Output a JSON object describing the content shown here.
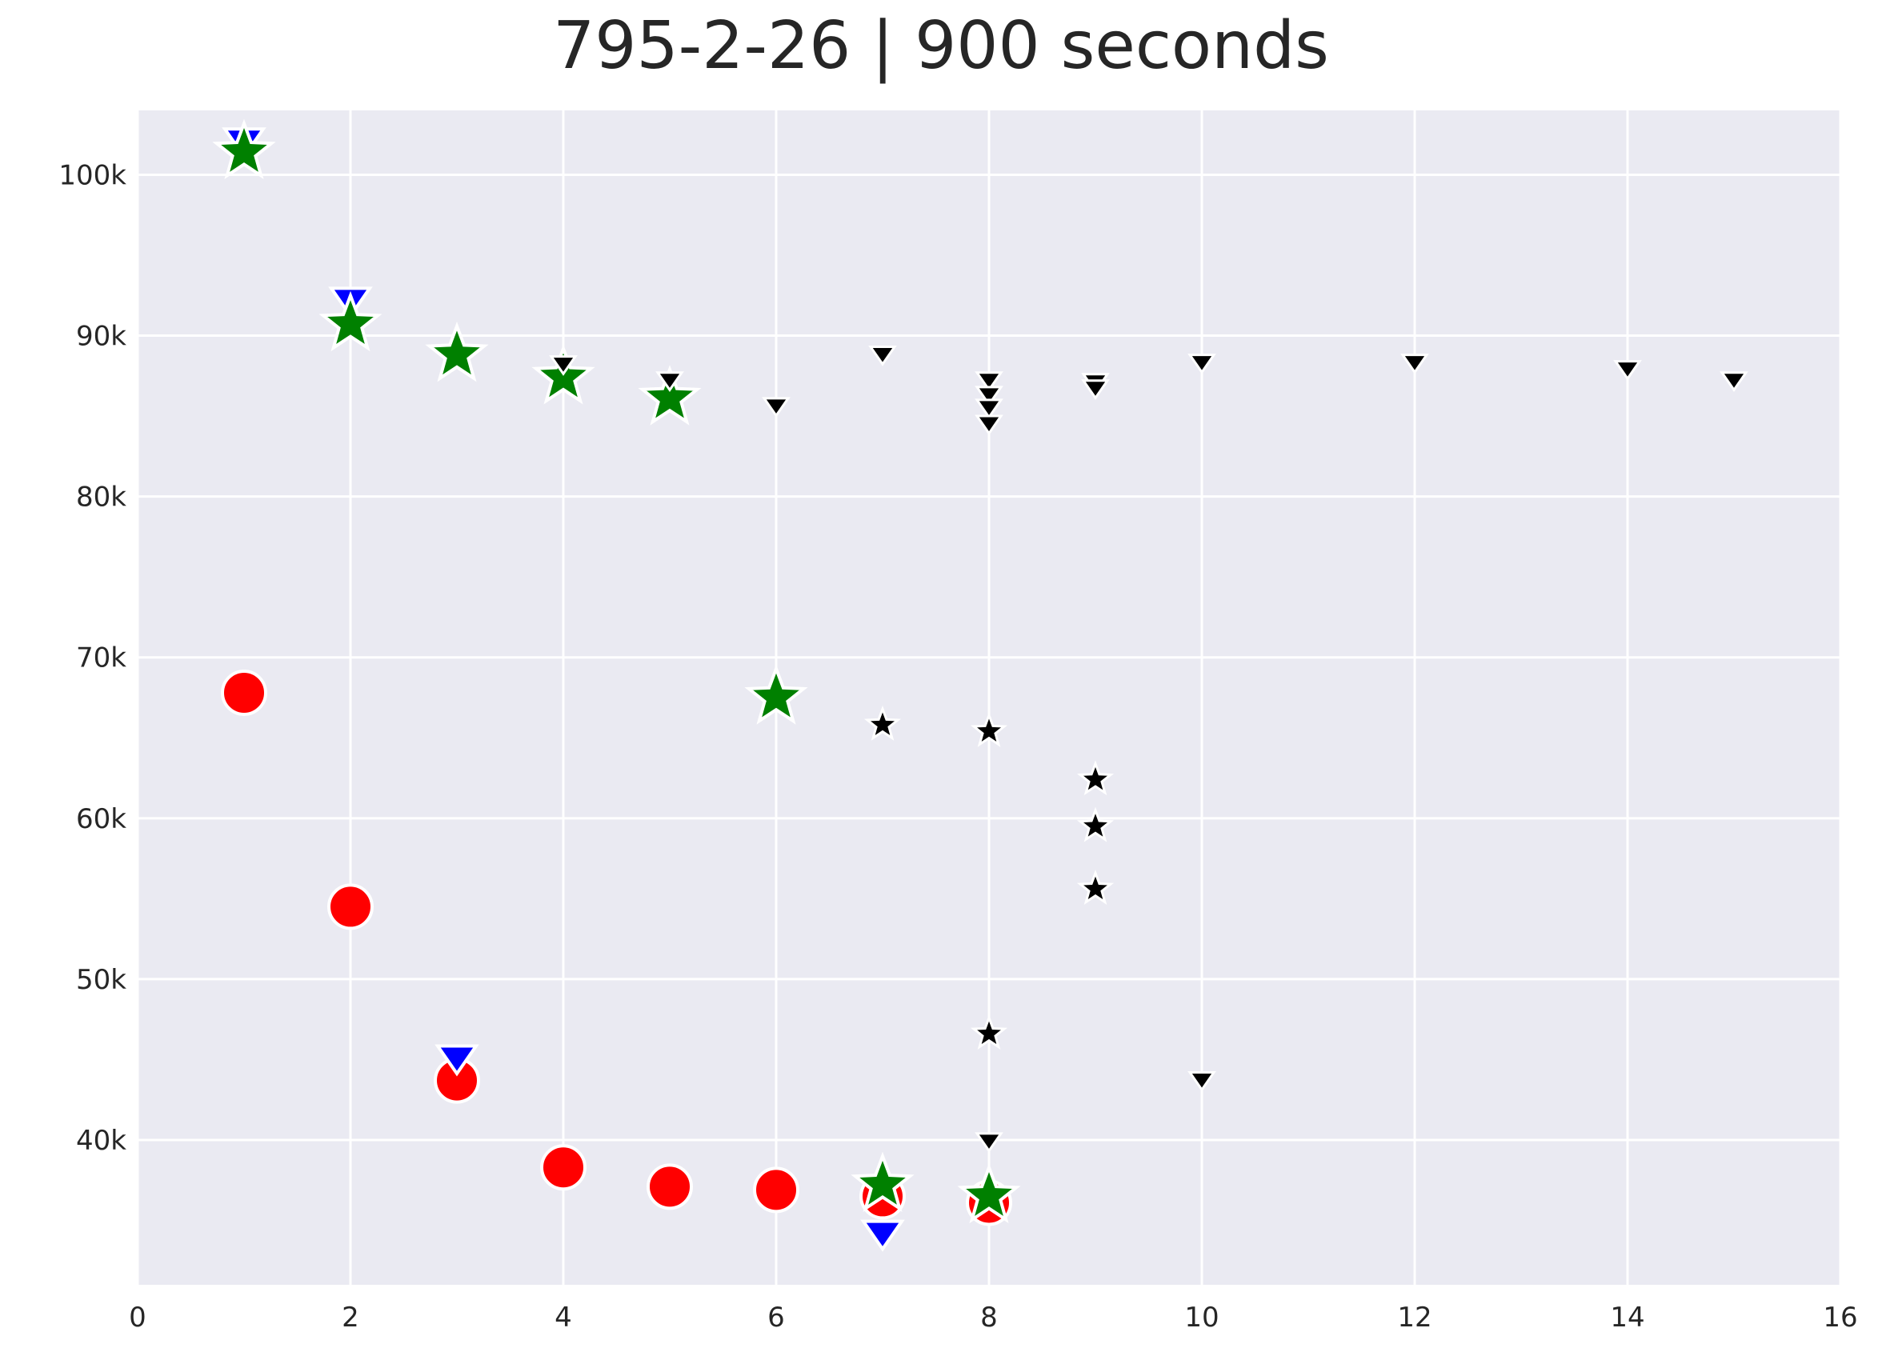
{
  "chart_data": {
    "type": "scatter",
    "title": "795-2-26 | 900 seconds",
    "xlabel": "",
    "ylabel": "",
    "xlim": [
      0,
      16
    ],
    "ylim": [
      31000,
      104000
    ],
    "x_ticks": [
      0,
      2,
      4,
      6,
      8,
      10,
      12,
      14,
      16
    ],
    "x_tick_labels": [
      "0",
      "2",
      "4",
      "6",
      "8",
      "10",
      "12",
      "14",
      "16"
    ],
    "y_ticks": [
      40000,
      50000,
      60000,
      70000,
      80000,
      90000,
      100000
    ],
    "y_tick_labels": [
      "40k",
      "50k",
      "60k",
      "70k",
      "80k",
      "90k",
      "100k"
    ],
    "grid": true,
    "background": "#eaeaf2",
    "series": [
      {
        "marker": "circle",
        "color": "#ff0000",
        "size": "large",
        "points": [
          [
            1,
            67800
          ],
          [
            2,
            54500
          ],
          [
            3,
            43700
          ],
          [
            4,
            38300
          ],
          [
            5,
            37100
          ],
          [
            6,
            36900
          ],
          [
            7,
            36500
          ],
          [
            8,
            36100
          ]
        ]
      },
      {
        "marker": "triangle-down",
        "color": "#0000ff",
        "size": "large",
        "points": [
          [
            1,
            102200
          ],
          [
            2,
            92300
          ],
          [
            3,
            45200
          ],
          [
            7,
            34300
          ]
        ]
      },
      {
        "marker": "star",
        "color": "#008000",
        "size": "large",
        "points": [
          [
            1,
            101400
          ],
          [
            2,
            90700
          ],
          [
            3,
            88800
          ],
          [
            4,
            87400
          ],
          [
            5,
            86100
          ],
          [
            6,
            67500
          ],
          [
            7,
            37200
          ],
          [
            8,
            36500
          ]
        ]
      },
      {
        "marker": "triangle-down",
        "color": "#000000",
        "size": "small",
        "points": [
          [
            4,
            88300
          ],
          [
            5,
            87300
          ],
          [
            6,
            85700
          ],
          [
            7,
            88900
          ],
          [
            8,
            87300
          ],
          [
            8,
            86400
          ],
          [
            8,
            85600
          ],
          [
            8,
            84600
          ],
          [
            9,
            87200
          ],
          [
            9,
            86800
          ],
          [
            10,
            88400
          ],
          [
            12,
            88400
          ],
          [
            14,
            88000
          ],
          [
            15,
            87300
          ],
          [
            10,
            43800
          ],
          [
            8,
            40000
          ]
        ]
      },
      {
        "marker": "star",
        "color": "#000000",
        "size": "small",
        "points": [
          [
            7,
            65800
          ],
          [
            8,
            65400
          ],
          [
            9,
            62400
          ],
          [
            9,
            59500
          ],
          [
            9,
            55600
          ],
          [
            8,
            46600
          ]
        ]
      }
    ]
  }
}
